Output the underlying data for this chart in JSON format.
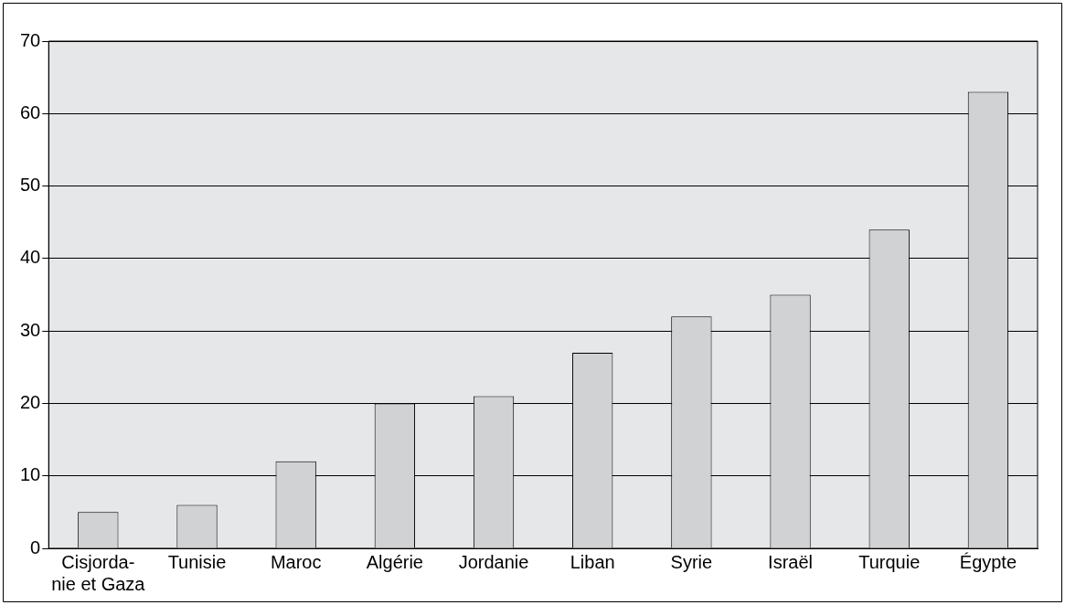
{
  "chart_data": {
    "type": "bar",
    "categories": [
      "Cisjorda-\nnie et Gaza",
      "Tunisie",
      "Maroc",
      "Algérie",
      "Jordanie",
      "Liban",
      "Syrie",
      "Israël",
      "Turquie",
      "Égypte"
    ],
    "values": [
      5,
      6,
      12,
      20,
      21,
      27,
      32,
      35,
      44,
      63
    ],
    "color": "#d1d2d4",
    "ylim": [
      0,
      70
    ],
    "yticks": [
      0,
      10,
      20,
      30,
      40,
      50,
      60,
      70
    ],
    "grid": "y"
  }
}
